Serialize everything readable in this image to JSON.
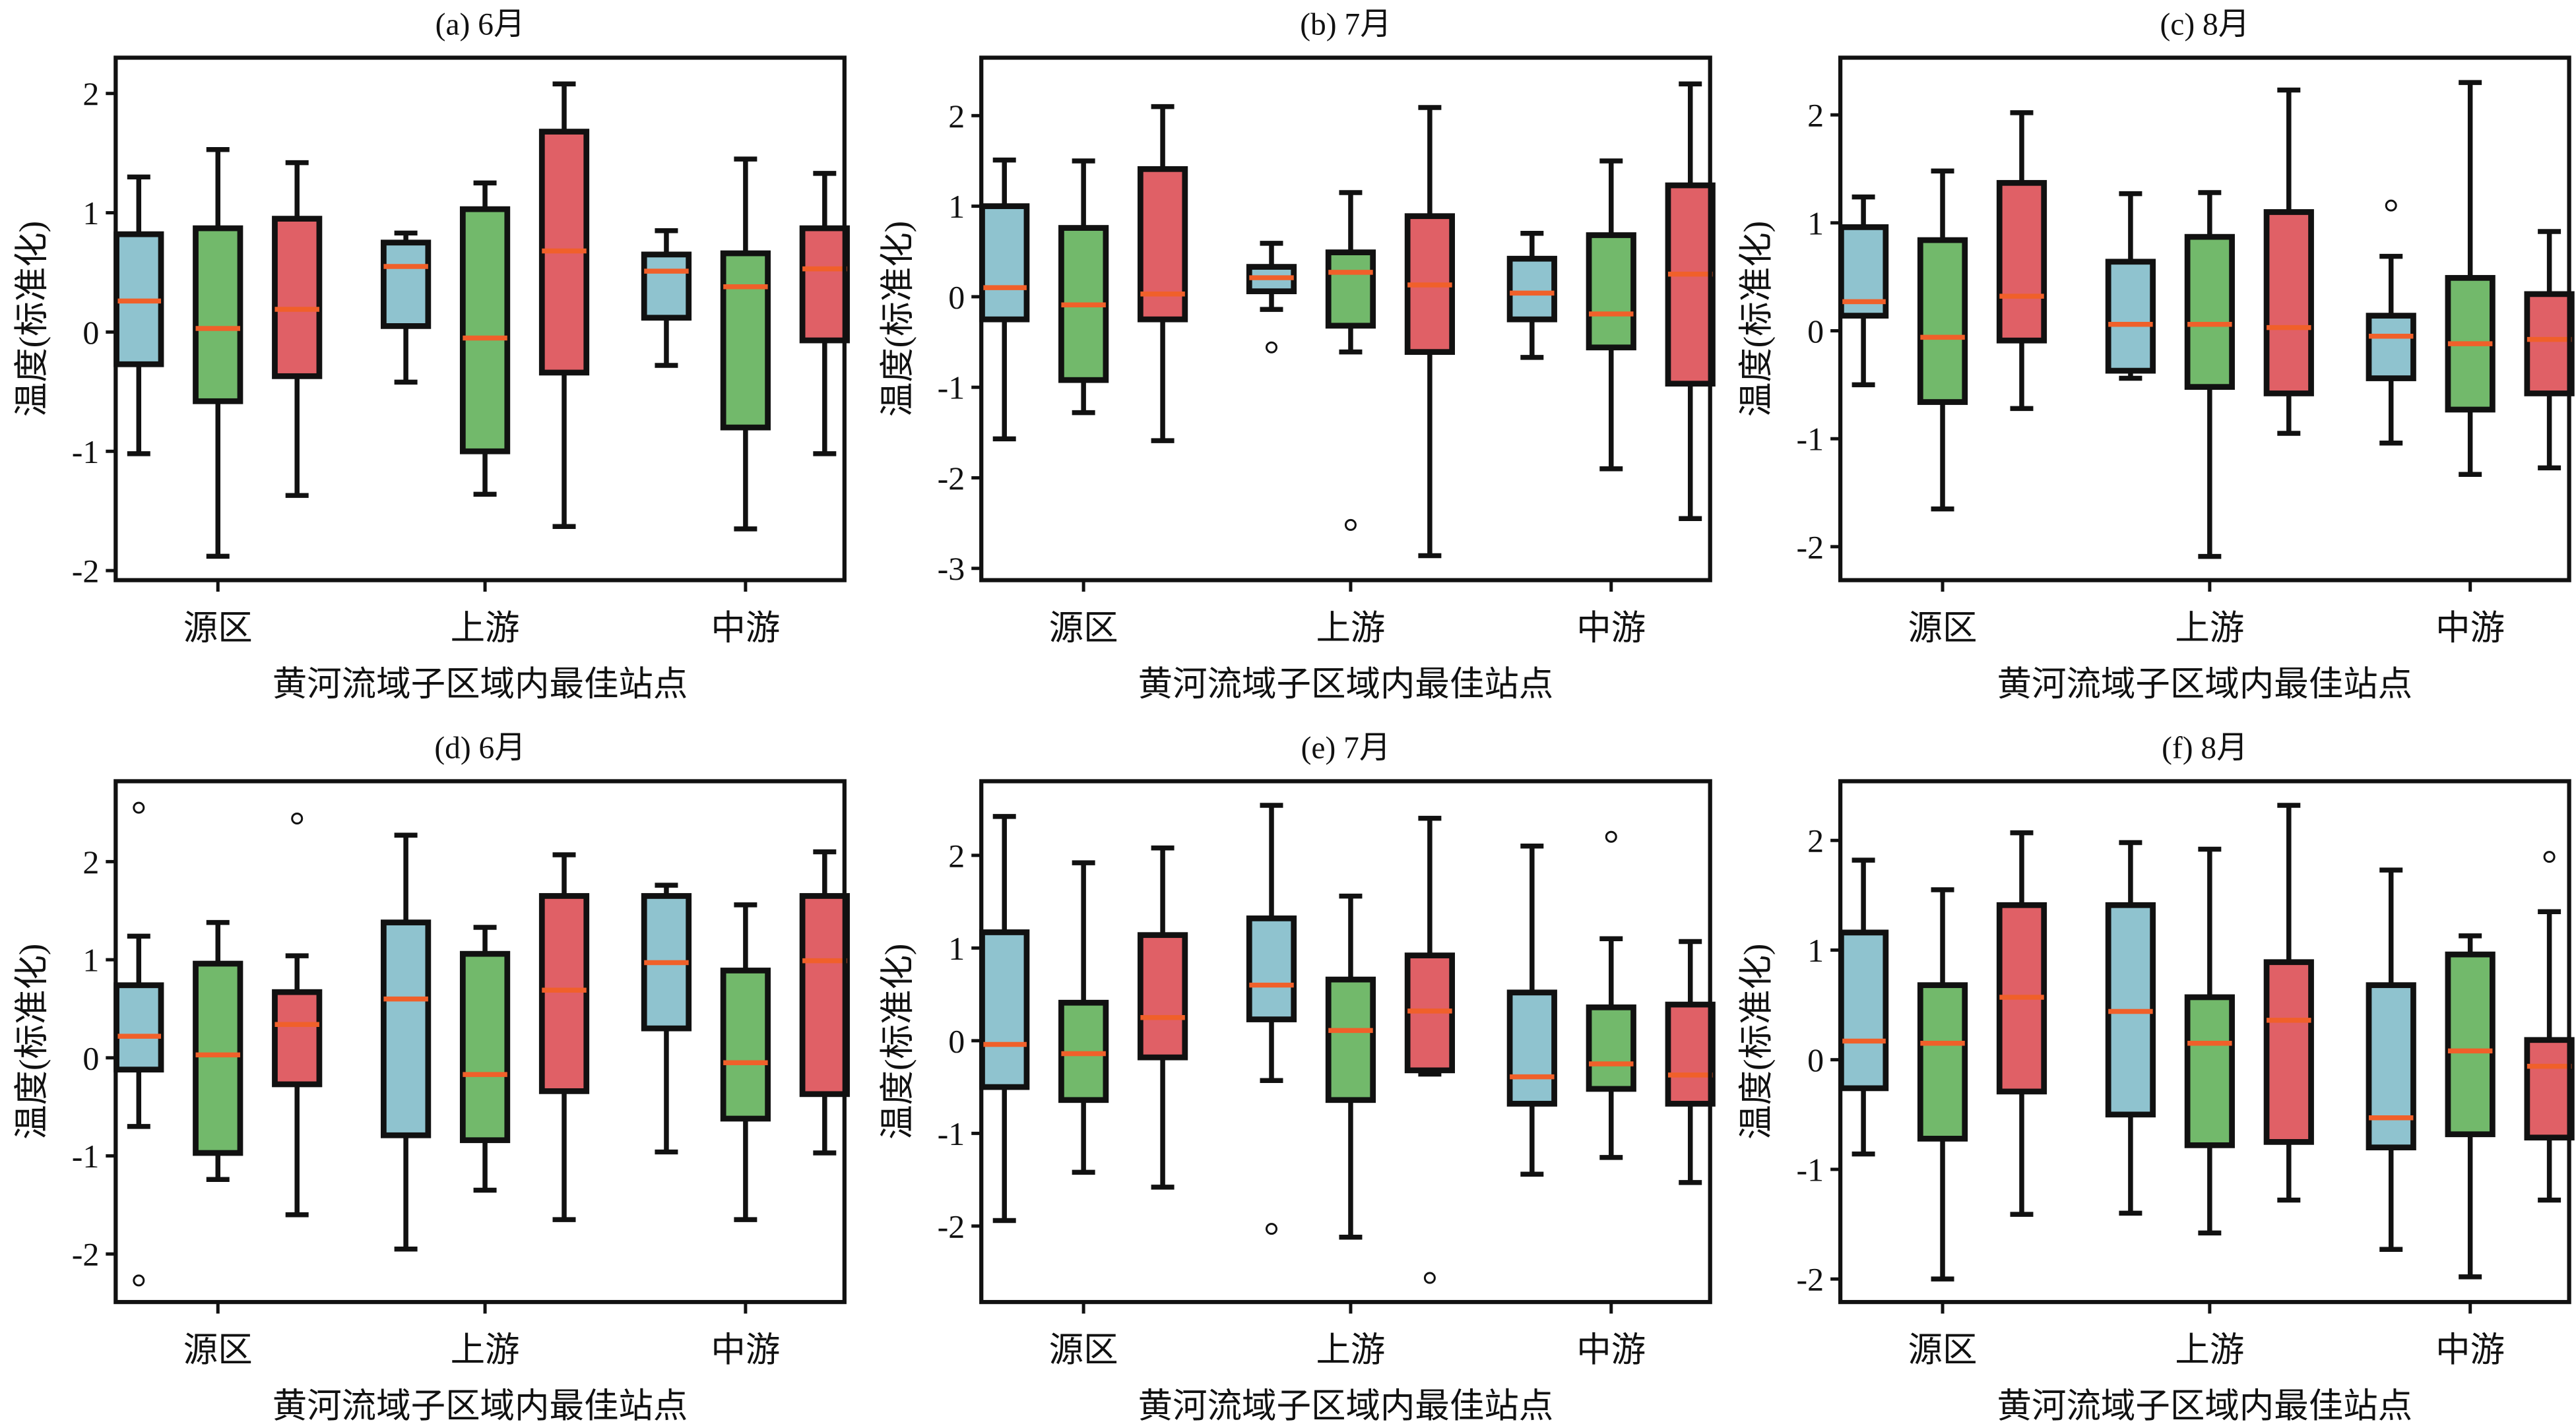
{
  "colors": {
    "blue": "#8fc3cf",
    "green": "#72b96b",
    "red": "#e06066",
    "median": "#f0602a",
    "edge": "#111111"
  },
  "chart_data": [
    {
      "type": "box",
      "title": "(a) 6月",
      "xlabel": "黄河流域子区域内最佳站点",
      "ylabel": "温度(标准化)",
      "categories": [
        "源区",
        "上游",
        "中游"
      ],
      "ylim": [
        -2.08,
        2.3
      ],
      "yticks": [
        -2,
        -1,
        0,
        1,
        2
      ],
      "boxes": [
        [
          {
            "min": -1.02,
            "q1": -0.27,
            "median": 0.26,
            "q3": 0.82,
            "max": 1.3,
            "outliers": []
          },
          {
            "min": -1.88,
            "q1": -0.58,
            "median": 0.03,
            "q3": 0.87,
            "max": 1.53,
            "outliers": []
          },
          {
            "min": -1.37,
            "q1": -0.37,
            "median": 0.19,
            "q3": 0.95,
            "max": 1.42,
            "outliers": []
          }
        ],
        [
          {
            "min": -0.42,
            "q1": 0.05,
            "median": 0.55,
            "q3": 0.75,
            "max": 0.83,
            "outliers": []
          },
          {
            "min": -1.36,
            "q1": -1.0,
            "median": -0.05,
            "q3": 1.03,
            "max": 1.25,
            "outliers": []
          },
          {
            "min": -1.63,
            "q1": -0.34,
            "median": 0.68,
            "q3": 1.68,
            "max": 2.08,
            "outliers": []
          }
        ],
        [
          {
            "min": -0.28,
            "q1": 0.12,
            "median": 0.51,
            "q3": 0.65,
            "max": 0.85,
            "outliers": []
          },
          {
            "min": -1.65,
            "q1": -0.8,
            "median": 0.38,
            "q3": 0.66,
            "max": 1.45,
            "outliers": []
          },
          {
            "min": -1.02,
            "q1": -0.07,
            "median": 0.53,
            "q3": 0.87,
            "max": 1.33,
            "outliers": []
          }
        ]
      ]
    },
    {
      "type": "box",
      "title": "(b) 7月",
      "xlabel": "黄河流域子区域内最佳站点",
      "ylabel": "温度(标准化)",
      "categories": [
        "源区",
        "上游",
        "中游"
      ],
      "ylim": [
        -3.13,
        2.64
      ],
      "yticks": [
        -3,
        -2,
        -1,
        0,
        1,
        2
      ],
      "boxes": [
        [
          {
            "min": -1.57,
            "q1": -0.25,
            "median": 0.1,
            "q3": 1.0,
            "max": 1.51,
            "outliers": []
          },
          {
            "min": -1.28,
            "q1": -0.92,
            "median": -0.09,
            "q3": 0.76,
            "max": 1.5,
            "outliers": []
          },
          {
            "min": -1.59,
            "q1": -0.25,
            "median": 0.03,
            "q3": 1.41,
            "max": 2.1,
            "outliers": []
          }
        ],
        [
          {
            "min": -0.14,
            "q1": 0.06,
            "median": 0.21,
            "q3": 0.33,
            "max": 0.59,
            "outliers": [
              -0.56
            ]
          },
          {
            "min": -0.61,
            "q1": -0.32,
            "median": 0.27,
            "q3": 0.49,
            "max": 1.15,
            "outliers": [
              -2.52
            ]
          },
          {
            "min": -2.86,
            "q1": -0.61,
            "median": 0.13,
            "q3": 0.89,
            "max": 2.09,
            "outliers": []
          }
        ],
        [
          {
            "min": -0.67,
            "q1": -0.25,
            "median": 0.04,
            "q3": 0.42,
            "max": 0.7,
            "outliers": []
          },
          {
            "min": -1.9,
            "q1": -0.56,
            "median": -0.19,
            "q3": 0.68,
            "max": 1.5,
            "outliers": []
          },
          {
            "min": -2.45,
            "q1": -0.96,
            "median": 0.25,
            "q3": 1.23,
            "max": 2.35,
            "outliers": []
          }
        ]
      ]
    },
    {
      "type": "box",
      "title": "(c) 8月",
      "xlabel": "黄河流域子区域内最佳站点",
      "ylabel": "温度(标准化)",
      "categories": [
        "源区",
        "上游",
        "中游"
      ],
      "ylim": [
        -2.31,
        2.53
      ],
      "yticks": [
        -2,
        -1,
        0,
        1,
        2
      ],
      "boxes": [
        [
          {
            "min": -0.5,
            "q1": 0.14,
            "median": 0.27,
            "q3": 0.96,
            "max": 1.24,
            "outliers": []
          },
          {
            "min": -1.65,
            "q1": -0.66,
            "median": -0.06,
            "q3": 0.84,
            "max": 1.48,
            "outliers": []
          },
          {
            "min": -0.72,
            "q1": -0.09,
            "median": 0.32,
            "q3": 1.37,
            "max": 2.02,
            "outliers": []
          }
        ],
        [
          {
            "min": -0.44,
            "q1": -0.37,
            "median": 0.06,
            "q3": 0.64,
            "max": 1.27,
            "outliers": []
          },
          {
            "min": -2.09,
            "q1": -0.52,
            "median": 0.06,
            "q3": 0.87,
            "max": 1.28,
            "outliers": []
          },
          {
            "min": -0.95,
            "q1": -0.58,
            "median": 0.03,
            "q3": 1.1,
            "max": 2.23,
            "outliers": []
          }
        ],
        [
          {
            "min": -1.04,
            "q1": -0.44,
            "median": -0.05,
            "q3": 0.14,
            "max": 0.69,
            "outliers": [
              1.16
            ]
          },
          {
            "min": -1.33,
            "q1": -0.73,
            "median": -0.12,
            "q3": 0.49,
            "max": 2.3,
            "outliers": []
          },
          {
            "min": -1.27,
            "q1": -0.58,
            "median": -0.08,
            "q3": 0.34,
            "max": 0.92,
            "outliers": []
          }
        ]
      ]
    },
    {
      "type": "box",
      "title": "(d) 6月",
      "xlabel": "黄河流域子区域内最佳站点",
      "ylabel": "温度(标准化)",
      "categories": [
        "源区",
        "上游",
        "中游"
      ],
      "ylim": [
        -2.49,
        2.82
      ],
      "yticks": [
        -2,
        -1,
        0,
        1,
        2
      ],
      "boxes": [
        [
          {
            "min": -0.7,
            "q1": -0.12,
            "median": 0.22,
            "q3": 0.74,
            "max": 1.24,
            "outliers": [
              2.55,
              -2.27
            ]
          },
          {
            "min": -1.24,
            "q1": -0.97,
            "median": 0.03,
            "q3": 0.96,
            "max": 1.38,
            "outliers": []
          },
          {
            "min": -1.6,
            "q1": -0.27,
            "median": 0.34,
            "q3": 0.67,
            "max": 1.04,
            "outliers": [
              2.44
            ]
          }
        ],
        [
          {
            "min": -1.95,
            "q1": -0.79,
            "median": 0.6,
            "q3": 1.38,
            "max": 2.27,
            "outliers": []
          },
          {
            "min": -1.35,
            "q1": -0.84,
            "median": -0.17,
            "q3": 1.06,
            "max": 1.33,
            "outliers": []
          },
          {
            "min": -1.65,
            "q1": -0.34,
            "median": 0.69,
            "q3": 1.65,
            "max": 2.07,
            "outliers": []
          }
        ],
        [
          {
            "min": -0.96,
            "q1": 0.3,
            "median": 0.97,
            "q3": 1.65,
            "max": 1.76,
            "outliers": []
          },
          {
            "min": -1.65,
            "q1": -0.62,
            "median": -0.05,
            "q3": 0.89,
            "max": 1.56,
            "outliers": []
          },
          {
            "min": -0.97,
            "q1": -0.37,
            "median": 0.99,
            "q3": 1.65,
            "max": 2.1,
            "outliers": []
          }
        ]
      ]
    },
    {
      "type": "box",
      "title": "(e) 7月",
      "xlabel": "黄河流域子区域内最佳站点",
      "ylabel": "温度(标准化)",
      "categories": [
        "源区",
        "上游",
        "中游"
      ],
      "ylim": [
        -2.82,
        2.8
      ],
      "yticks": [
        -2,
        -1,
        0,
        1,
        2
      ],
      "boxes": [
        [
          {
            "min": -1.94,
            "q1": -0.5,
            "median": -0.04,
            "q3": 1.17,
            "max": 2.42,
            "outliers": []
          },
          {
            "min": -1.42,
            "q1": -0.64,
            "median": -0.14,
            "q3": 0.41,
            "max": 1.92,
            "outliers": []
          },
          {
            "min": -1.58,
            "q1": -0.18,
            "median": 0.25,
            "q3": 1.14,
            "max": 2.08,
            "outliers": []
          }
        ],
        [
          {
            "min": -0.43,
            "q1": 0.23,
            "median": 0.6,
            "q3": 1.32,
            "max": 2.54,
            "outliers": [
              -2.03
            ]
          },
          {
            "min": -2.12,
            "q1": -0.64,
            "median": 0.11,
            "q3": 0.66,
            "max": 1.56,
            "outliers": []
          },
          {
            "min": -0.36,
            "q1": -0.32,
            "median": 0.32,
            "q3": 0.92,
            "max": 2.4,
            "outliers": [
              -2.56
            ]
          }
        ],
        [
          {
            "min": -1.44,
            "q1": -0.68,
            "median": -0.39,
            "q3": 0.52,
            "max": 2.1,
            "outliers": []
          },
          {
            "min": -1.26,
            "q1": -0.52,
            "median": -0.25,
            "q3": 0.36,
            "max": 1.1,
            "outliers": [
              2.2
            ]
          },
          {
            "min": -1.53,
            "q1": -0.68,
            "median": -0.37,
            "q3": 0.39,
            "max": 1.07,
            "outliers": []
          }
        ]
      ]
    },
    {
      "type": "box",
      "title": "(f) 8月",
      "xlabel": "黄河流域子区域内最佳站点",
      "ylabel": "温度(标准化)",
      "categories": [
        "源区",
        "上游",
        "中游"
      ],
      "ylim": [
        -2.21,
        2.54
      ],
      "yticks": [
        -2,
        -1,
        0,
        1,
        2
      ],
      "boxes": [
        [
          {
            "min": -0.86,
            "q1": -0.26,
            "median": 0.17,
            "q3": 1.16,
            "max": 1.82,
            "outliers": []
          },
          {
            "min": -2.0,
            "q1": -0.72,
            "median": 0.15,
            "q3": 0.68,
            "max": 1.55,
            "outliers": []
          },
          {
            "min": -1.41,
            "q1": -0.29,
            "median": 0.57,
            "q3": 1.41,
            "max": 2.07,
            "outliers": []
          }
        ],
        [
          {
            "min": -1.4,
            "q1": -0.5,
            "median": 0.44,
            "q3": 1.41,
            "max": 1.98,
            "outliers": []
          },
          {
            "min": -1.58,
            "q1": -0.78,
            "median": 0.15,
            "q3": 0.57,
            "max": 1.92,
            "outliers": []
          },
          {
            "min": -1.28,
            "q1": -0.75,
            "median": 0.36,
            "q3": 0.89,
            "max": 2.32,
            "outliers": []
          }
        ],
        [
          {
            "min": -1.73,
            "q1": -0.8,
            "median": -0.53,
            "q3": 0.68,
            "max": 1.73,
            "outliers": []
          },
          {
            "min": -1.98,
            "q1": -0.68,
            "median": 0.08,
            "q3": 0.96,
            "max": 1.13,
            "outliers": []
          },
          {
            "min": -1.28,
            "q1": -0.71,
            "median": -0.06,
            "q3": 0.18,
            "max": 1.35,
            "outliers": [
              1.85
            ]
          }
        ]
      ]
    }
  ]
}
